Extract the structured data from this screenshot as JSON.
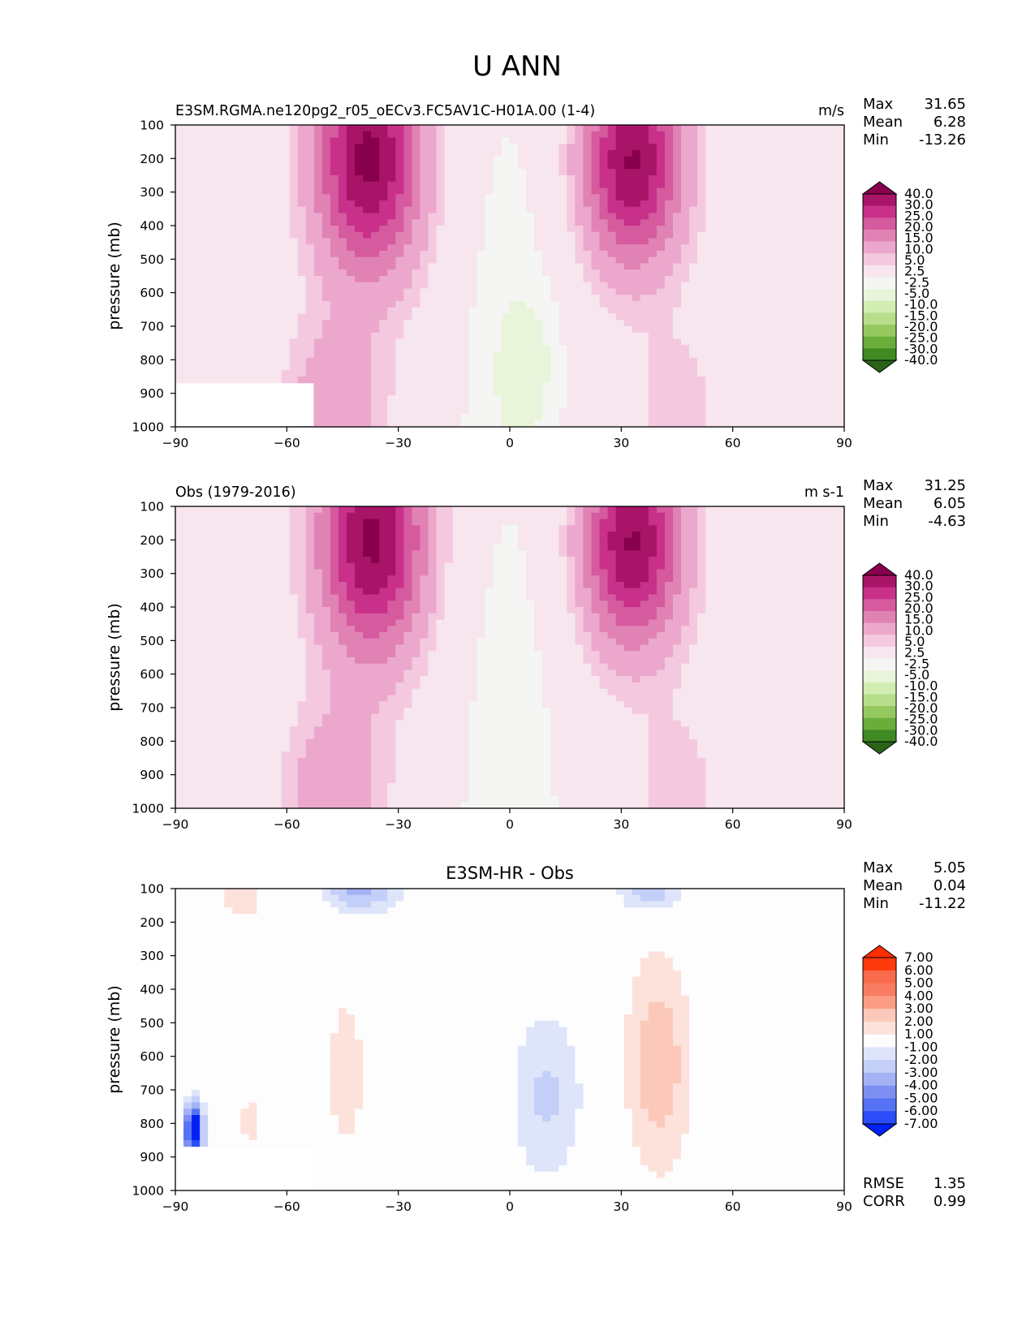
{
  "figure_title": "U ANN",
  "colors": {
    "diverging_fill": [
      "#2a6318",
      "#3f8a23",
      "#6aad3b",
      "#95c95f",
      "#b6de8b",
      "#d2edb2",
      "#e9f5da",
      "#f5f5f3",
      "#f8e6ef",
      "#f4c9df",
      "#eca8cc",
      "#e182b5",
      "#d65a9e",
      "#c8308a",
      "#a81568",
      "#88004d"
    ],
    "diff_fill": [
      "#0021f5",
      "#2b4cf7",
      "#5673f5",
      "#7d90f2",
      "#a2b2f5",
      "#c3cff8",
      "#dee5fb",
      "#fdfdfd",
      "#fde2db",
      "#fcc8b9",
      "#fb9d84",
      "#f97c62",
      "#f86b4b",
      "#fe3a0c",
      "#ff2e00"
    ],
    "axis": "#000000"
  },
  "chart_data": [
    {
      "type": "contour",
      "title": "E3SM.RGMA.ne120pg2_r05_oECv3.FC5AV1C-H01A.00 (1-4)",
      "units": "m/s",
      "xlabel": "",
      "ylabel": "pressure (mb)",
      "xlim": [
        -90,
        90
      ],
      "ylim": [
        1000,
        100
      ],
      "x_ticks": [
        "−90",
        "−60",
        "−30",
        "0",
        "30",
        "60",
        "90"
      ],
      "y_ticks": [
        "100",
        "200",
        "300",
        "400",
        "500",
        "600",
        "700",
        "800",
        "900",
        "1000"
      ],
      "stats": [
        {
          "label": "Max",
          "value": "31.65"
        },
        {
          "label": "Mean",
          "value": "6.28"
        },
        {
          "label": "Min",
          "value": "-13.26"
        }
      ],
      "colorbar_labels": [
        "40.0",
        "30.0",
        "25.0",
        "20.0",
        "15.0",
        "10.0",
        "5.0",
        "2.5",
        "-2.5",
        "-5.0",
        "-10.0",
        "-15.0",
        "-20.0",
        "-25.0",
        "-30.0",
        "-40.0"
      ],
      "jets": [
        {
          "lat": -38,
          "p": 200,
          "peak": 31.65
        },
        {
          "lat": 33,
          "p": 210,
          "peak": 30.5
        }
      ]
    },
    {
      "type": "contour",
      "title": "Obs (1979-2016)",
      "units": "m s-1",
      "xlabel": "",
      "ylabel": "pressure (mb)",
      "xlim": [
        -90,
        90
      ],
      "ylim": [
        1000,
        100
      ],
      "x_ticks": [
        "−90",
        "−60",
        "−30",
        "0",
        "30",
        "60",
        "90"
      ],
      "y_ticks": [
        "100",
        "200",
        "300",
        "400",
        "500",
        "600",
        "700",
        "800",
        "900",
        "1000"
      ],
      "stats": [
        {
          "label": "Max",
          "value": "31.25"
        },
        {
          "label": "Mean",
          "value": "6.05"
        },
        {
          "label": "Min",
          "value": "-4.63"
        }
      ],
      "colorbar_labels": [
        "40.0",
        "30.0",
        "25.0",
        "20.0",
        "15.0",
        "10.0",
        "5.0",
        "2.5",
        "-2.5",
        "-5.0",
        "-10.0",
        "-15.0",
        "-20.0",
        "-25.0",
        "-30.0",
        "-40.0"
      ],
      "jets": [
        {
          "lat": -37,
          "p": 200,
          "peak": 31.25
        },
        {
          "lat": 33,
          "p": 210,
          "peak": 30.5
        }
      ]
    },
    {
      "type": "contour",
      "title": "E3SM-HR - Obs",
      "units": "",
      "xlabel": "",
      "ylabel": "pressure (mb)",
      "xlim": [
        -90,
        90
      ],
      "ylim": [
        1000,
        100
      ],
      "x_ticks": [
        "−90",
        "−60",
        "−30",
        "0",
        "30",
        "60",
        "90"
      ],
      "y_ticks": [
        "100",
        "200",
        "300",
        "400",
        "500",
        "600",
        "700",
        "800",
        "900",
        "1000"
      ],
      "stats": [
        {
          "label": "Max",
          "value": "5.05"
        },
        {
          "label": "Mean",
          "value": "0.04"
        },
        {
          "label": "Min",
          "value": "-11.22"
        }
      ],
      "colorbar_labels": [
        "7.00",
        "6.00",
        "5.00",
        "4.00",
        "3.00",
        "2.00",
        "1.00",
        "-1.00",
        "-2.00",
        "-3.00",
        "-4.00",
        "-5.00",
        "-6.00",
        "-7.00"
      ],
      "bottom_stats": [
        {
          "label": "RMSE",
          "value": "1.35"
        },
        {
          "label": "CORR",
          "value": "0.99"
        }
      ]
    }
  ]
}
